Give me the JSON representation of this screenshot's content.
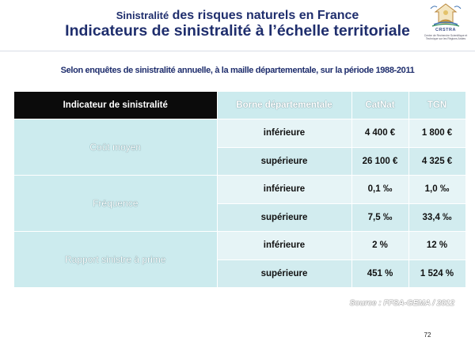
{
  "header": {
    "title_prefix": "Sinistralité",
    "title_rest": " des risques naturels en France",
    "title_line2": "Indicateurs de sinistralité à l’échelle territoriale"
  },
  "logo": {
    "name": "CRSTRA",
    "tagline": "Centre de Recherche Scientifique et Technique sur les Régions Arides"
  },
  "subtitle": "Selon enquêtes de sinistralité annuelle, à la maille départementale,  sur la période 1988-2011",
  "table": {
    "headers": [
      "Indicateur de sinistralité",
      "Borne départementale",
      "CatNat",
      "TGN"
    ],
    "groups": [
      {
        "label": "Coût moyen",
        "rows": [
          {
            "borne": "inférieure",
            "catnat": "4 400 €",
            "tgn": "1 800 €"
          },
          {
            "borne": "supérieure",
            "catnat": "26 100 €",
            "tgn": "4 325 €"
          }
        ]
      },
      {
        "label": "Fréquence",
        "rows": [
          {
            "borne": "inférieure",
            "catnat": "0,1 ‰",
            "tgn": "1,0 ‰"
          },
          {
            "borne": "supérieure",
            "catnat": "7,5 ‰",
            "tgn": "33,4 ‰"
          }
        ]
      },
      {
        "label": "Rapport sinistre à prime",
        "rows": [
          {
            "borne": "inférieure",
            "catnat": "2 %",
            "tgn": "12 %"
          },
          {
            "borne": "supérieure",
            "catnat": "451 %",
            "tgn": "1 524 %"
          }
        ]
      }
    ]
  },
  "source": "Source : FFSA-GEMA / 2012",
  "page_number": "72",
  "colors": {
    "title_navy": "#1f2e6d",
    "header_black": "#0b0b0b",
    "cell_light": "#e6f4f6",
    "cell_dark": "#d2ecef",
    "label_cell": "#ccebee"
  }
}
